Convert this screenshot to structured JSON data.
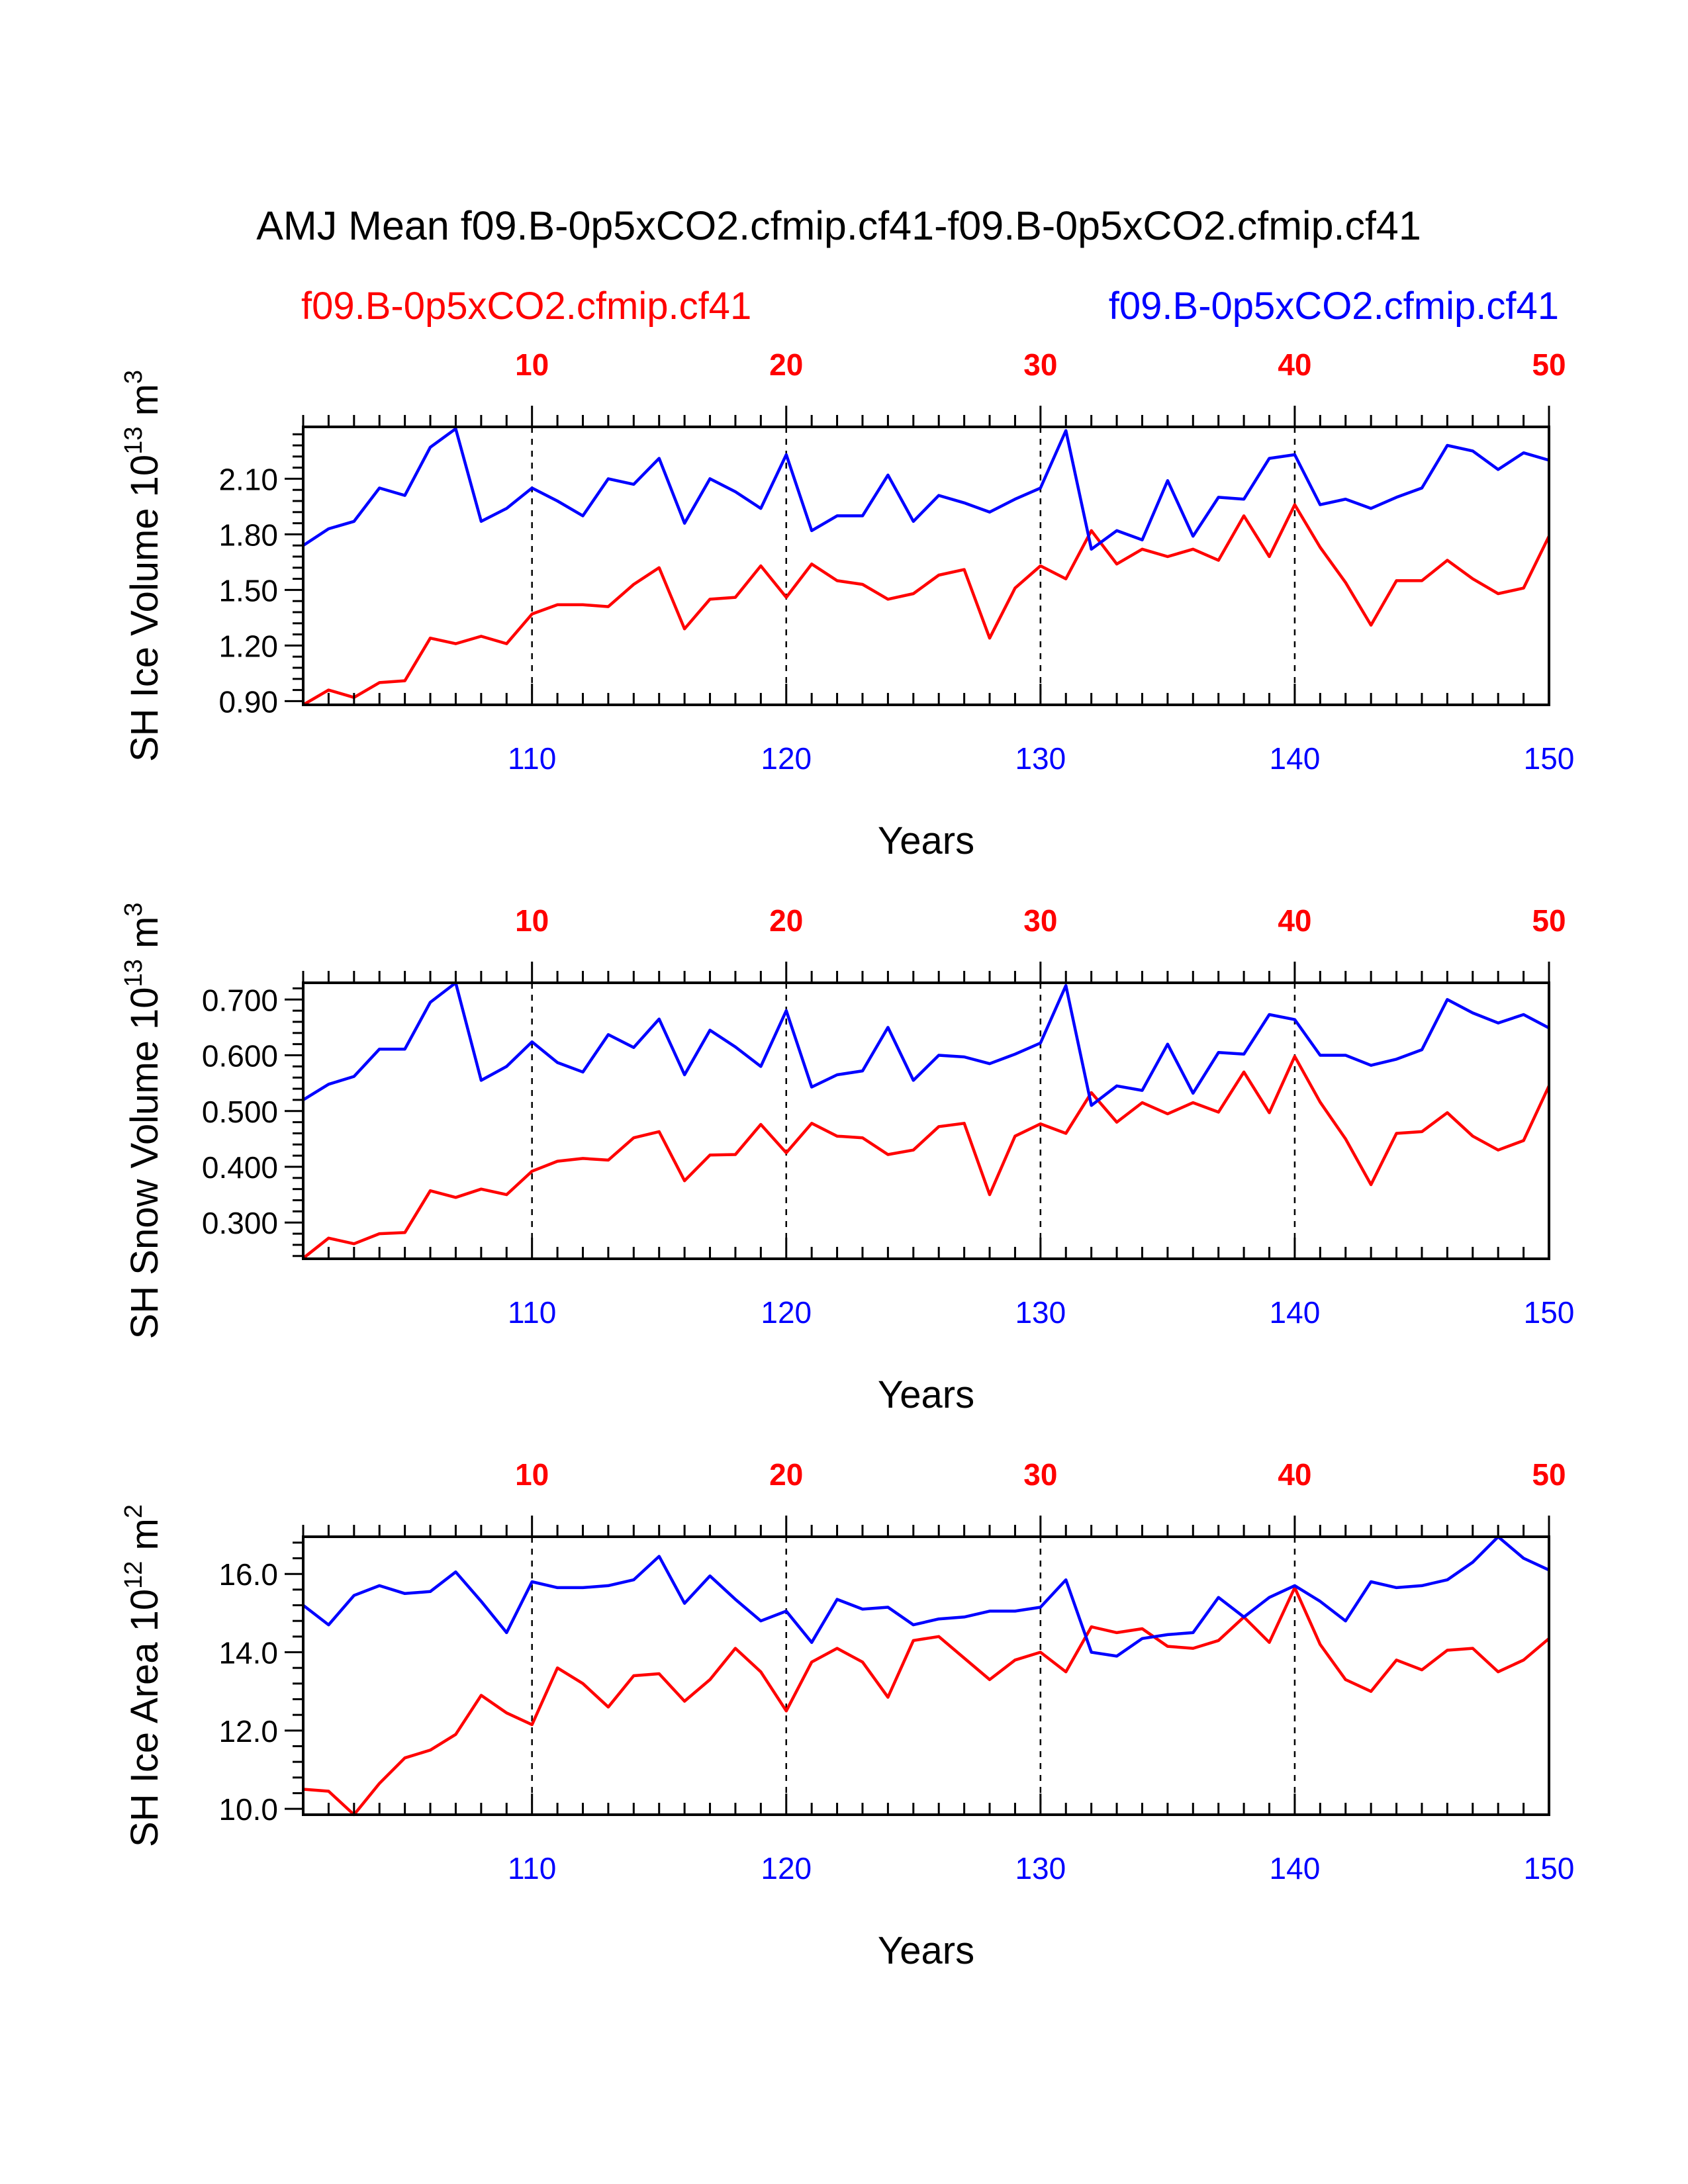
{
  "figure": {
    "title": "AMJ Mean f09.B-0p5xCO2.cfmip.cf41-f09.B-0p5xCO2.cfmip.cf41",
    "left_label": "f09.B-0p5xCO2.cfmip.cf41",
    "right_label": "f09.B-0p5xCO2.cfmip.cf41",
    "colors": {
      "case1": "#ff0000",
      "case2": "#0000ff",
      "frame": "#000000"
    }
  },
  "chart_data": [
    {
      "type": "line",
      "ylabel": "SH Ice Volume 10",
      "ylabel_exp": "13",
      "ylabel_unit": " m",
      "ylabel_unit_exp": "3",
      "xlabel": "Years",
      "xlim": [
        101,
        150
      ],
      "ylim": [
        0.88,
        2.38
      ],
      "yticks": [
        "0.90",
        "1.20",
        "1.50",
        "1.80",
        "2.10"
      ],
      "ytick_values": [
        0.9,
        1.2,
        1.5,
        1.8,
        2.1
      ],
      "xticks_bottom": [
        "110",
        "120",
        "130",
        "140",
        "150"
      ],
      "xticks_top": [
        "10",
        "20",
        "30",
        "40",
        "50"
      ],
      "x": [
        101,
        102,
        103,
        104,
        105,
        106,
        107,
        108,
        109,
        110,
        111,
        112,
        113,
        114,
        115,
        116,
        117,
        118,
        119,
        120,
        121,
        122,
        123,
        124,
        125,
        126,
        127,
        128,
        129,
        130,
        131,
        132,
        133,
        134,
        135,
        136,
        137,
        138,
        139,
        140,
        141,
        142,
        143,
        144,
        145,
        146,
        147,
        148,
        149,
        150
      ],
      "series": [
        {
          "color": "#ff0000",
          "values": [
            0.88,
            0.96,
            0.92,
            1.0,
            1.01,
            1.24,
            1.21,
            1.25,
            1.21,
            1.37,
            1.42,
            1.42,
            1.41,
            1.53,
            1.62,
            1.29,
            1.45,
            1.46,
            1.63,
            1.46,
            1.64,
            1.55,
            1.53,
            1.45,
            1.48,
            1.58,
            1.61,
            1.24,
            1.51,
            1.63,
            1.56,
            1.82,
            1.64,
            1.72,
            1.68,
            1.72,
            1.66,
            1.9,
            1.68,
            1.96,
            1.73,
            1.54,
            1.31,
            1.55,
            1.55,
            1.66,
            1.56,
            1.48,
            1.51,
            1.79
          ]
        },
        {
          "color": "#0000ff",
          "values": [
            1.74,
            1.83,
            1.87,
            2.05,
            2.01,
            2.27,
            2.37,
            1.87,
            1.94,
            2.05,
            1.98,
            1.9,
            2.1,
            2.07,
            2.21,
            1.86,
            2.1,
            2.03,
            1.94,
            2.23,
            1.82,
            1.9,
            1.9,
            2.12,
            1.87,
            2.01,
            1.97,
            1.92,
            1.99,
            2.05,
            2.36,
            1.72,
            1.82,
            1.77,
            2.09,
            1.79,
            2.0,
            1.99,
            2.21,
            2.23,
            1.96,
            1.99,
            1.94,
            2.0,
            2.05,
            2.28,
            2.25,
            2.15,
            2.24,
            2.2
          ]
        }
      ]
    },
    {
      "type": "line",
      "ylabel": "SH Snow Volume 10",
      "ylabel_exp": "13",
      "ylabel_unit": " m",
      "ylabel_unit_exp": "3",
      "xlabel": "Years",
      "xlim": [
        101,
        150
      ],
      "ylim": [
        0.235,
        0.73
      ],
      "yticks": [
        "0.300",
        "0.400",
        "0.500",
        "0.600",
        "0.700"
      ],
      "ytick_values": [
        0.3,
        0.4,
        0.5,
        0.6,
        0.7
      ],
      "xticks_bottom": [
        "110",
        "120",
        "130",
        "140",
        "150"
      ],
      "xticks_top": [
        "10",
        "20",
        "30",
        "40",
        "50"
      ],
      "x": [
        101,
        102,
        103,
        104,
        105,
        106,
        107,
        108,
        109,
        110,
        111,
        112,
        113,
        114,
        115,
        116,
        117,
        118,
        119,
        120,
        121,
        122,
        123,
        124,
        125,
        126,
        127,
        128,
        129,
        130,
        131,
        132,
        133,
        134,
        135,
        136,
        137,
        138,
        139,
        140,
        141,
        142,
        143,
        144,
        145,
        146,
        147,
        148,
        149,
        150
      ],
      "series": [
        {
          "color": "#ff0000",
          "values": [
            0.236,
            0.272,
            0.262,
            0.28,
            0.282,
            0.357,
            0.345,
            0.36,
            0.35,
            0.392,
            0.41,
            0.415,
            0.412,
            0.452,
            0.463,
            0.375,
            0.421,
            0.422,
            0.476,
            0.425,
            0.478,
            0.455,
            0.452,
            0.422,
            0.43,
            0.472,
            0.478,
            0.35,
            0.455,
            0.477,
            0.46,
            0.533,
            0.48,
            0.515,
            0.495,
            0.515,
            0.498,
            0.57,
            0.497,
            0.598,
            0.516,
            0.45,
            0.368,
            0.46,
            0.463,
            0.497,
            0.455,
            0.43,
            0.447,
            0.545
          ]
        },
        {
          "color": "#0000ff",
          "values": [
            0.52,
            0.548,
            0.562,
            0.611,
            0.611,
            0.695,
            0.73,
            0.555,
            0.58,
            0.624,
            0.587,
            0.57,
            0.637,
            0.614,
            0.665,
            0.565,
            0.645,
            0.615,
            0.58,
            0.68,
            0.543,
            0.565,
            0.572,
            0.65,
            0.555,
            0.6,
            0.597,
            0.585,
            0.602,
            0.622,
            0.725,
            0.51,
            0.545,
            0.537,
            0.62,
            0.532,
            0.605,
            0.602,
            0.673,
            0.664,
            0.6,
            0.6,
            0.582,
            0.593,
            0.61,
            0.7,
            0.676,
            0.658,
            0.673,
            0.649
          ]
        }
      ]
    },
    {
      "type": "line",
      "ylabel": "SH Ice Area 10",
      "ylabel_exp": "12",
      "ylabel_unit": " m",
      "ylabel_unit_exp": "2",
      "xlabel": "Years",
      "xlim": [
        101,
        150
      ],
      "ylim": [
        9.85,
        16.95
      ],
      "yticks": [
        "10.0",
        "12.0",
        "14.0",
        "16.0"
      ],
      "ytick_values": [
        10,
        12,
        14,
        16
      ],
      "xticks_bottom": [
        "110",
        "120",
        "130",
        "140",
        "150"
      ],
      "xticks_top": [
        "10",
        "20",
        "30",
        "40",
        "50"
      ],
      "x": [
        101,
        102,
        103,
        104,
        105,
        106,
        107,
        108,
        109,
        110,
        111,
        112,
        113,
        114,
        115,
        116,
        117,
        118,
        119,
        120,
        121,
        122,
        123,
        124,
        125,
        126,
        127,
        128,
        129,
        130,
        131,
        132,
        133,
        134,
        135,
        136,
        137,
        138,
        139,
        140,
        141,
        142,
        143,
        144,
        145,
        146,
        147,
        148,
        149,
        150
      ],
      "series": [
        {
          "color": "#ff0000",
          "values": [
            10.5,
            10.45,
            9.85,
            10.65,
            11.3,
            11.5,
            11.9,
            12.9,
            12.45,
            12.15,
            13.6,
            13.2,
            12.6,
            13.4,
            13.45,
            12.75,
            13.3,
            14.1,
            13.5,
            12.5,
            13.75,
            14.1,
            13.75,
            12.85,
            14.3,
            14.4,
            13.85,
            13.3,
            13.8,
            14.0,
            13.5,
            14.65,
            14.5,
            14.6,
            14.15,
            14.1,
            14.3,
            14.9,
            14.25,
            15.65,
            14.2,
            13.3,
            13.0,
            13.8,
            13.55,
            14.05,
            14.1,
            13.5,
            13.8,
            14.35
          ]
        },
        {
          "color": "#0000ff",
          "values": [
            15.2,
            14.7,
            15.45,
            15.7,
            15.5,
            15.55,
            16.05,
            15.3,
            14.5,
            15.8,
            15.65,
            15.65,
            15.7,
            15.85,
            16.45,
            15.25,
            15.95,
            15.35,
            14.8,
            15.05,
            14.25,
            15.35,
            15.1,
            15.15,
            14.7,
            14.85,
            14.9,
            15.05,
            15.05,
            15.15,
            15.85,
            14.0,
            13.9,
            14.35,
            14.45,
            14.5,
            15.4,
            14.9,
            15.4,
            15.7,
            15.3,
            14.8,
            15.8,
            15.65,
            15.7,
            15.85,
            16.3,
            16.95,
            16.4,
            16.1
          ]
        }
      ]
    }
  ]
}
